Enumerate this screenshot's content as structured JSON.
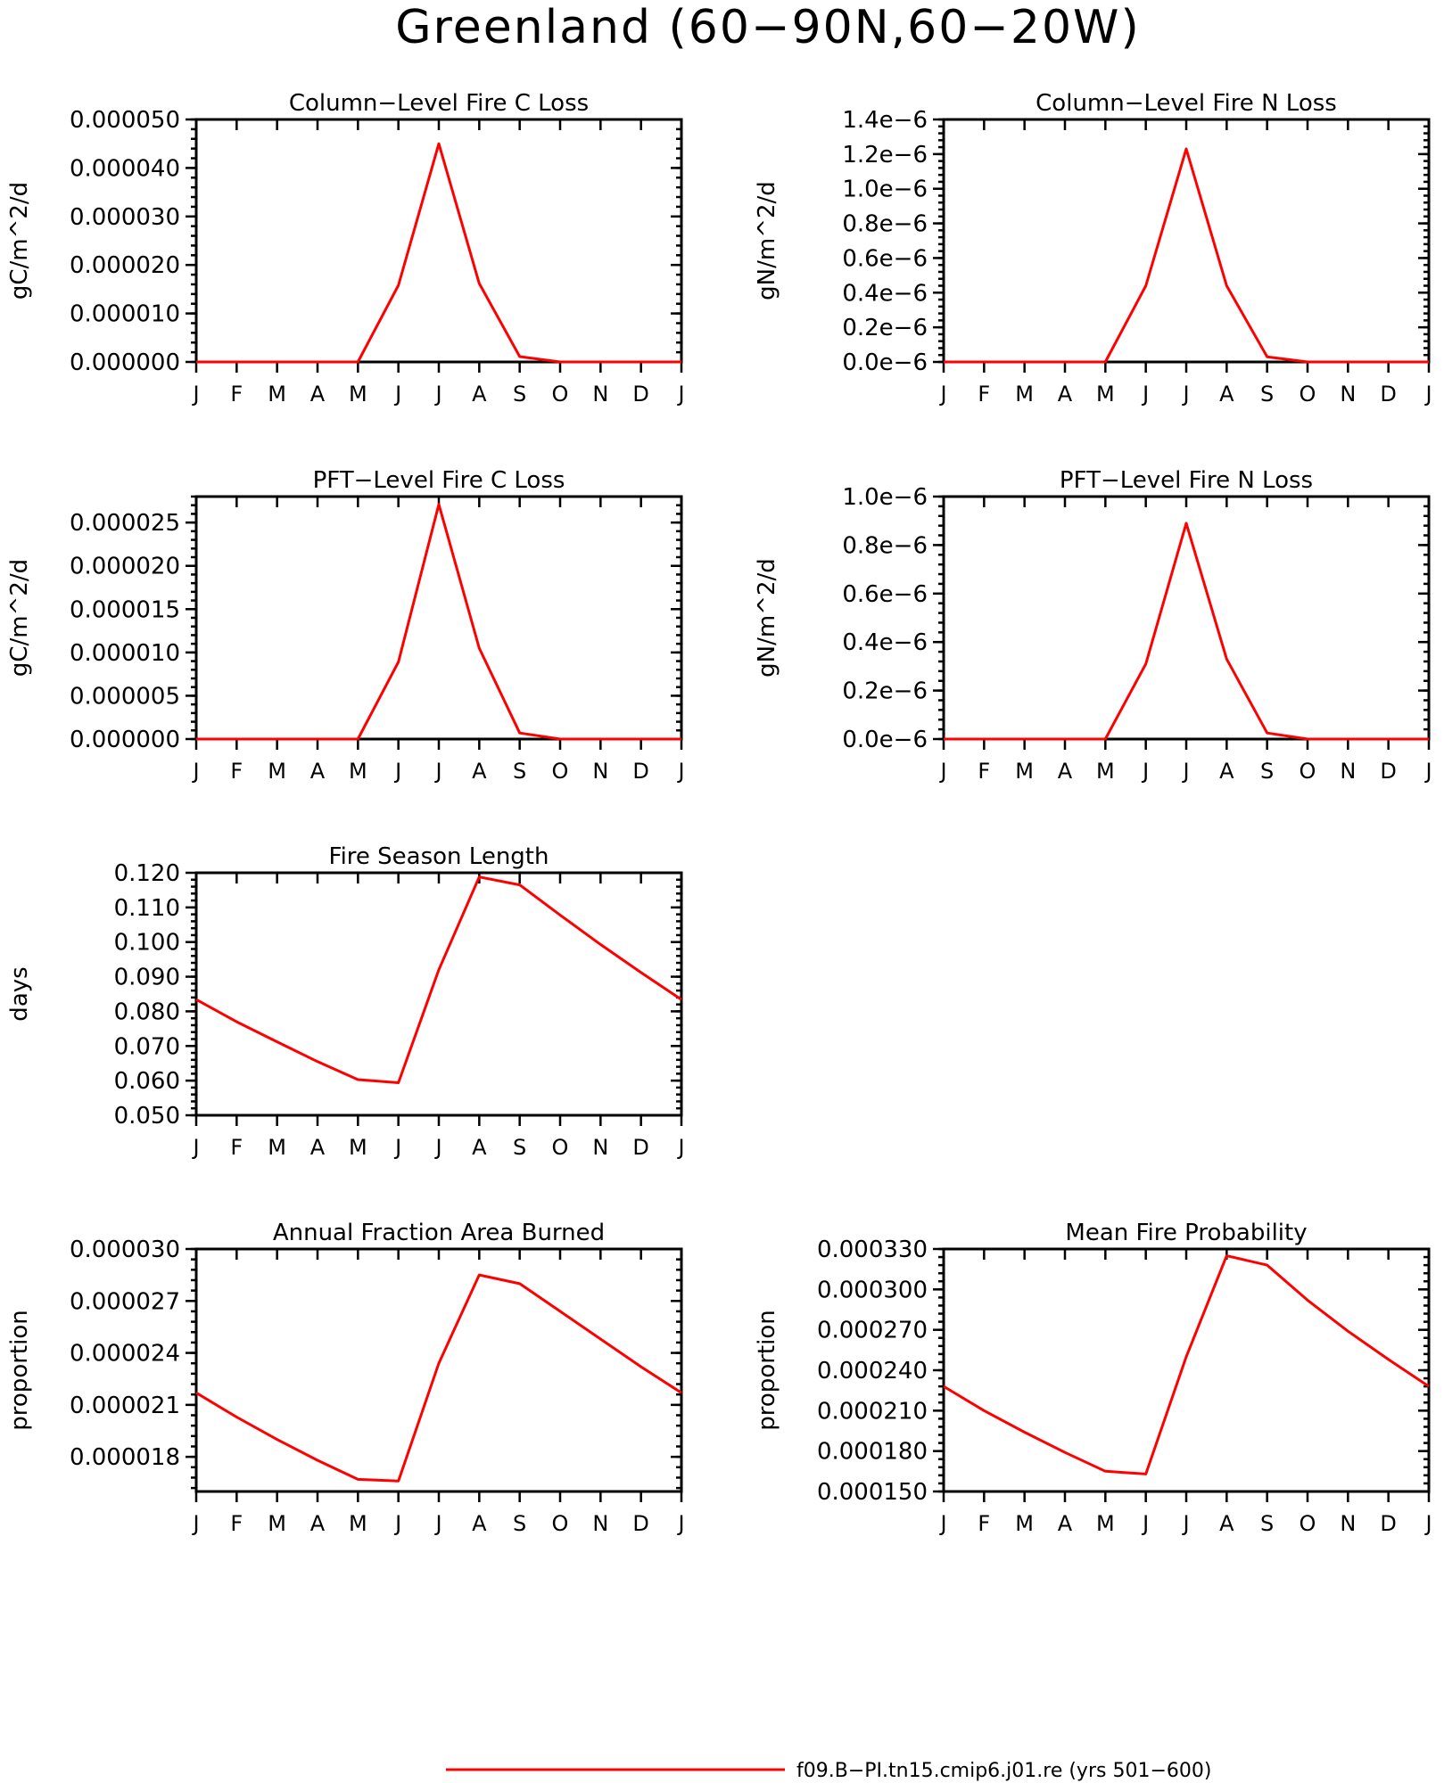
{
  "title": "Greenland (60−90N,60−20W)",
  "months": [
    "J",
    "F",
    "M",
    "A",
    "M",
    "J",
    "J",
    "A",
    "S",
    "O",
    "N",
    "D",
    "J"
  ],
  "series_color": "#ff0000",
  "legend": {
    "label": "f09.B−PI.tn15.cmip6.j01.re (yrs 501−600)"
  },
  "chart_data": [
    {
      "type": "line",
      "title": "Column−Level Fire C Loss",
      "ylabel": "gC/m^2/d",
      "ylim": [
        0,
        5e-05
      ],
      "yticks": [
        0,
        1e-05,
        2e-05,
        3e-05,
        4e-05,
        5e-05
      ],
      "ytick_labels": [
        "0.000000",
        "0.000010",
        "0.000020",
        "0.000030",
        "0.000040",
        "0.000050"
      ],
      "x": [
        "J",
        "F",
        "M",
        "A",
        "M",
        "J",
        "J",
        "A",
        "S",
        "O",
        "N",
        "D",
        "J"
      ],
      "values": [
        0,
        0,
        0,
        0,
        0,
        1.58e-05,
        4.5e-05,
        1.62e-05,
        1.1e-06,
        0,
        0,
        0,
        0
      ]
    },
    {
      "type": "line",
      "title": "Column−Level Fire N Loss",
      "ylabel": "gN/m^2/d",
      "ylim": [
        0,
        1.4e-06
      ],
      "yticks": [
        0,
        2e-07,
        4e-07,
        6e-07,
        8e-07,
        1e-06,
        1.2e-06,
        1.4e-06
      ],
      "ytick_labels": [
        "0.0e−6",
        "0.2e−6",
        "0.4e−6",
        "0.6e−6",
        "0.8e−6",
        "1.0e−6",
        "1.2e−6",
        "1.4e−6"
      ],
      "x": [
        "J",
        "F",
        "M",
        "A",
        "M",
        "J",
        "J",
        "A",
        "S",
        "O",
        "N",
        "D",
        "J"
      ],
      "values": [
        0,
        0,
        0,
        0,
        0,
        4.4e-07,
        1.23e-06,
        4.4e-07,
        3e-08,
        0,
        0,
        0,
        0
      ]
    },
    {
      "type": "line",
      "title": "PFT−Level Fire C Loss",
      "ylabel": "gC/m^2/d",
      "ylim": [
        0,
        2.8e-05
      ],
      "yticks": [
        0,
        5e-06,
        1e-05,
        1.5e-05,
        2e-05,
        2.5e-05
      ],
      "ytick_labels": [
        "0.000000",
        "0.000005",
        "0.000010",
        "0.000015",
        "0.000020",
        "0.000025"
      ],
      "x": [
        "J",
        "F",
        "M",
        "A",
        "M",
        "J",
        "J",
        "A",
        "S",
        "O",
        "N",
        "D",
        "J"
      ],
      "values": [
        0,
        0,
        0,
        0,
        0,
        8.9e-06,
        2.71e-05,
        1.05e-05,
        7e-07,
        0,
        0,
        0,
        0
      ]
    },
    {
      "type": "line",
      "title": "PFT−Level Fire N Loss",
      "ylabel": "gN/m^2/d",
      "ylim": [
        0,
        1e-06
      ],
      "yticks": [
        0,
        2e-07,
        4e-07,
        6e-07,
        8e-07,
        1e-06
      ],
      "ytick_labels": [
        "0.0e−6",
        "0.2e−6",
        "0.4e−6",
        "0.6e−6",
        "0.8e−6",
        "1.0e−6"
      ],
      "x": [
        "J",
        "F",
        "M",
        "A",
        "M",
        "J",
        "J",
        "A",
        "S",
        "O",
        "N",
        "D",
        "J"
      ],
      "values": [
        0,
        0,
        0,
        0,
        0,
        3.1e-07,
        8.9e-07,
        3.3e-07,
        2.5e-08,
        0,
        0,
        0,
        0
      ]
    },
    {
      "type": "line",
      "title": "Fire Season Length",
      "ylabel": "days",
      "ylim": [
        0.05,
        0.12
      ],
      "yticks": [
        0.05,
        0.06,
        0.07,
        0.08,
        0.09,
        0.1,
        0.11,
        0.12
      ],
      "ytick_labels": [
        "0.050",
        "0.060",
        "0.070",
        "0.080",
        "0.090",
        "0.100",
        "0.110",
        "0.120"
      ],
      "x": [
        "J",
        "F",
        "M",
        "A",
        "M",
        "J",
        "J",
        "A",
        "S",
        "O",
        "N",
        "D",
        "J"
      ],
      "values": [
        0.0834,
        0.077,
        0.0712,
        0.0655,
        0.0603,
        0.0594,
        0.092,
        0.1188,
        0.1165,
        0.1078,
        0.0993,
        0.0912,
        0.0834
      ]
    },
    {
      "type": "line",
      "title": "Annual Fraction Area Burned",
      "ylabel": "proportion",
      "ylim": [
        1.6e-05,
        3e-05
      ],
      "yticks": [
        1.8e-05,
        2.1e-05,
        2.4e-05,
        2.7e-05,
        3e-05
      ],
      "ytick_labels": [
        "0.000018",
        "0.000021",
        "0.000024",
        "0.000027",
        "0.000030"
      ],
      "x": [
        "J",
        "F",
        "M",
        "A",
        "M",
        "J",
        "J",
        "A",
        "S",
        "O",
        "N",
        "D",
        "J"
      ],
      "values": [
        2.17e-05,
        2.03e-05,
        1.9e-05,
        1.78e-05,
        1.67e-05,
        1.66e-05,
        2.34e-05,
        2.85e-05,
        2.8e-05,
        2.64e-05,
        2.48e-05,
        2.32e-05,
        2.17e-05
      ]
    },
    {
      "type": "line",
      "title": "Mean Fire Probability",
      "ylabel": "proportion",
      "ylim": [
        0.00015,
        0.00033
      ],
      "yticks": [
        0.00015,
        0.00018,
        0.00021,
        0.00024,
        0.00027,
        0.0003,
        0.00033
      ],
      "ytick_labels": [
        "0.000150",
        "0.000180",
        "0.000210",
        "0.000240",
        "0.000270",
        "0.000300",
        "0.000330"
      ],
      "x": [
        "J",
        "F",
        "M",
        "A",
        "M",
        "J",
        "J",
        "A",
        "S",
        "O",
        "N",
        "D",
        "J"
      ],
      "values": [
        0.000228,
        0.00021,
        0.000194,
        0.000179,
        0.000165,
        0.000163,
        0.00025,
        0.000325,
        0.000318,
        0.000292,
        0.000269,
        0.000248,
        0.000228
      ]
    }
  ]
}
